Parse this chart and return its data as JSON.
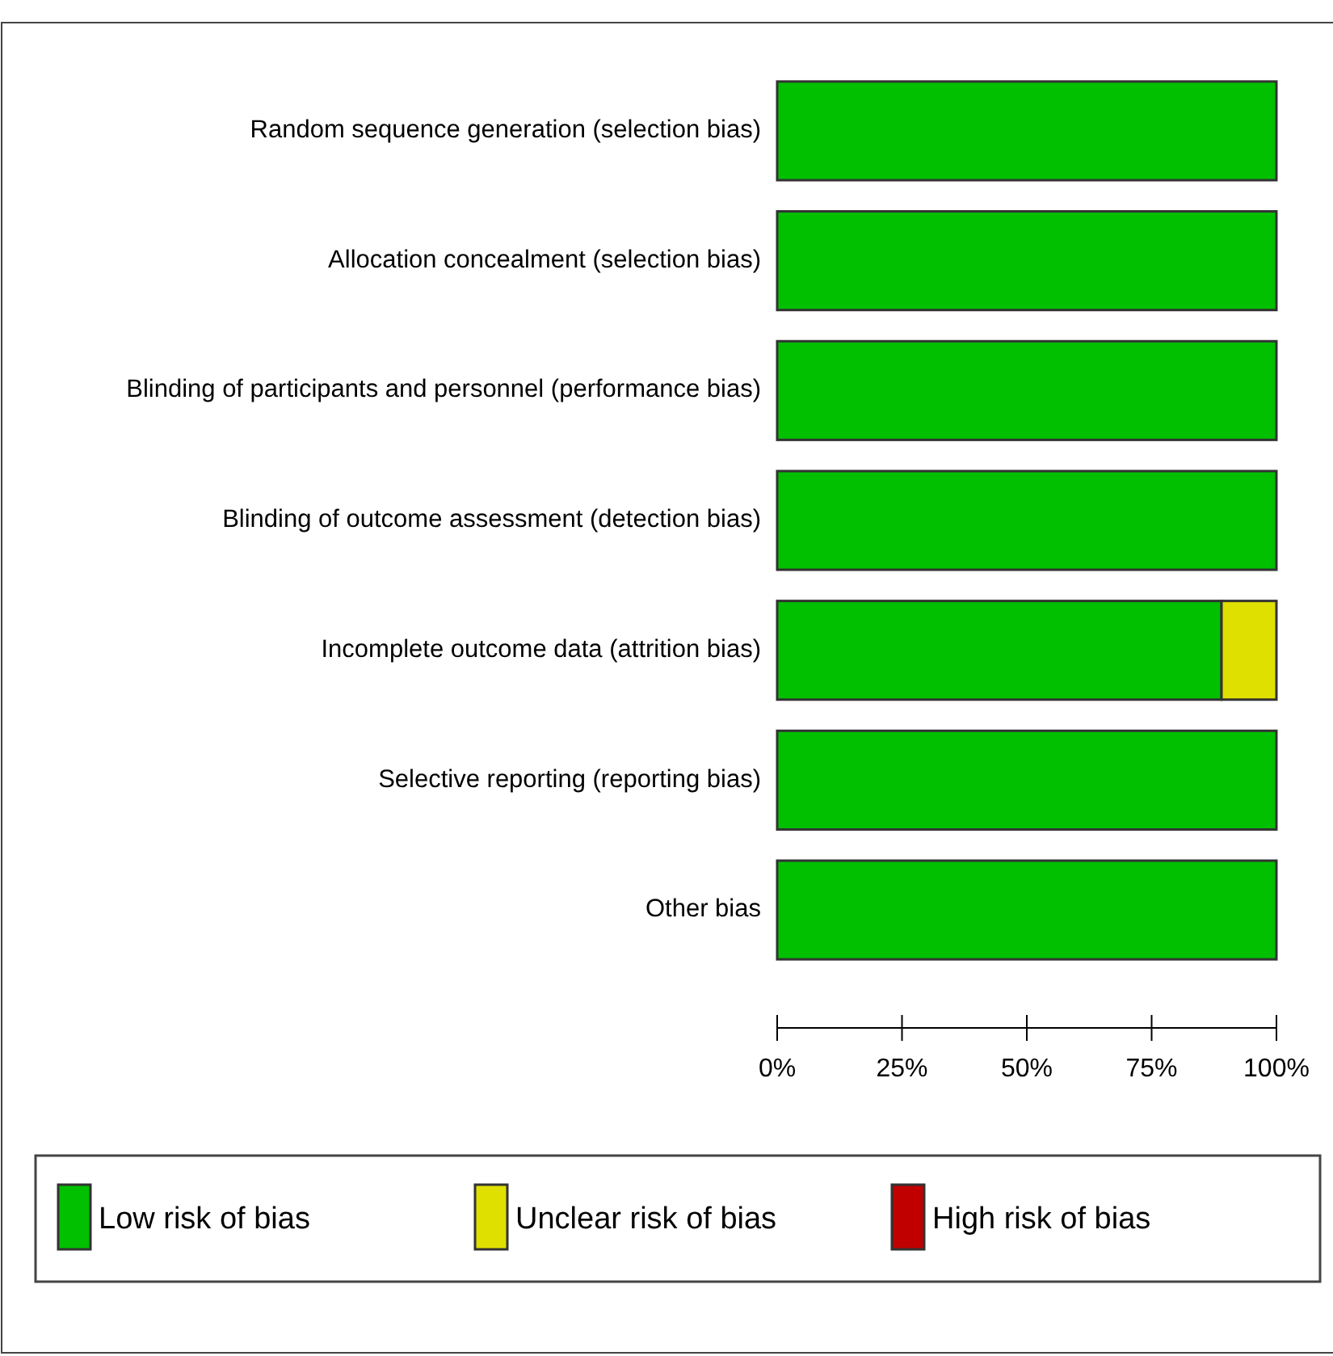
{
  "chart_data": {
    "type": "bar",
    "orientation": "horizontal",
    "stacked": true,
    "categories": [
      "Random sequence generation (selection bias)",
      "Allocation concealment (selection bias)",
      "Blinding of participants and personnel (performance bias)",
      "Blinding of outcome assessment (detection bias)",
      "Incomplete outcome data (attrition bias)",
      "Selective reporting (reporting bias)",
      "Other bias"
    ],
    "series": [
      {
        "name": "Low risk of bias",
        "color": "#00c000",
        "values": [
          100,
          100,
          100,
          100,
          89,
          100,
          100
        ]
      },
      {
        "name": "Unclear risk of bias",
        "color": "#e0e000",
        "values": [
          0,
          0,
          0,
          0,
          11,
          0,
          0
        ]
      },
      {
        "name": "High risk of bias",
        "color": "#c00000",
        "values": [
          0,
          0,
          0,
          0,
          0,
          0,
          0
        ]
      }
    ],
    "xlim": [
      0,
      100
    ],
    "xticks": [
      {
        "value": 0,
        "label": "0%"
      },
      {
        "value": 25,
        "label": "25%"
      },
      {
        "value": 50,
        "label": "50%"
      },
      {
        "value": 75,
        "label": "75%"
      },
      {
        "value": 100,
        "label": "100%"
      }
    ],
    "legend": "bottom",
    "grid": false
  }
}
